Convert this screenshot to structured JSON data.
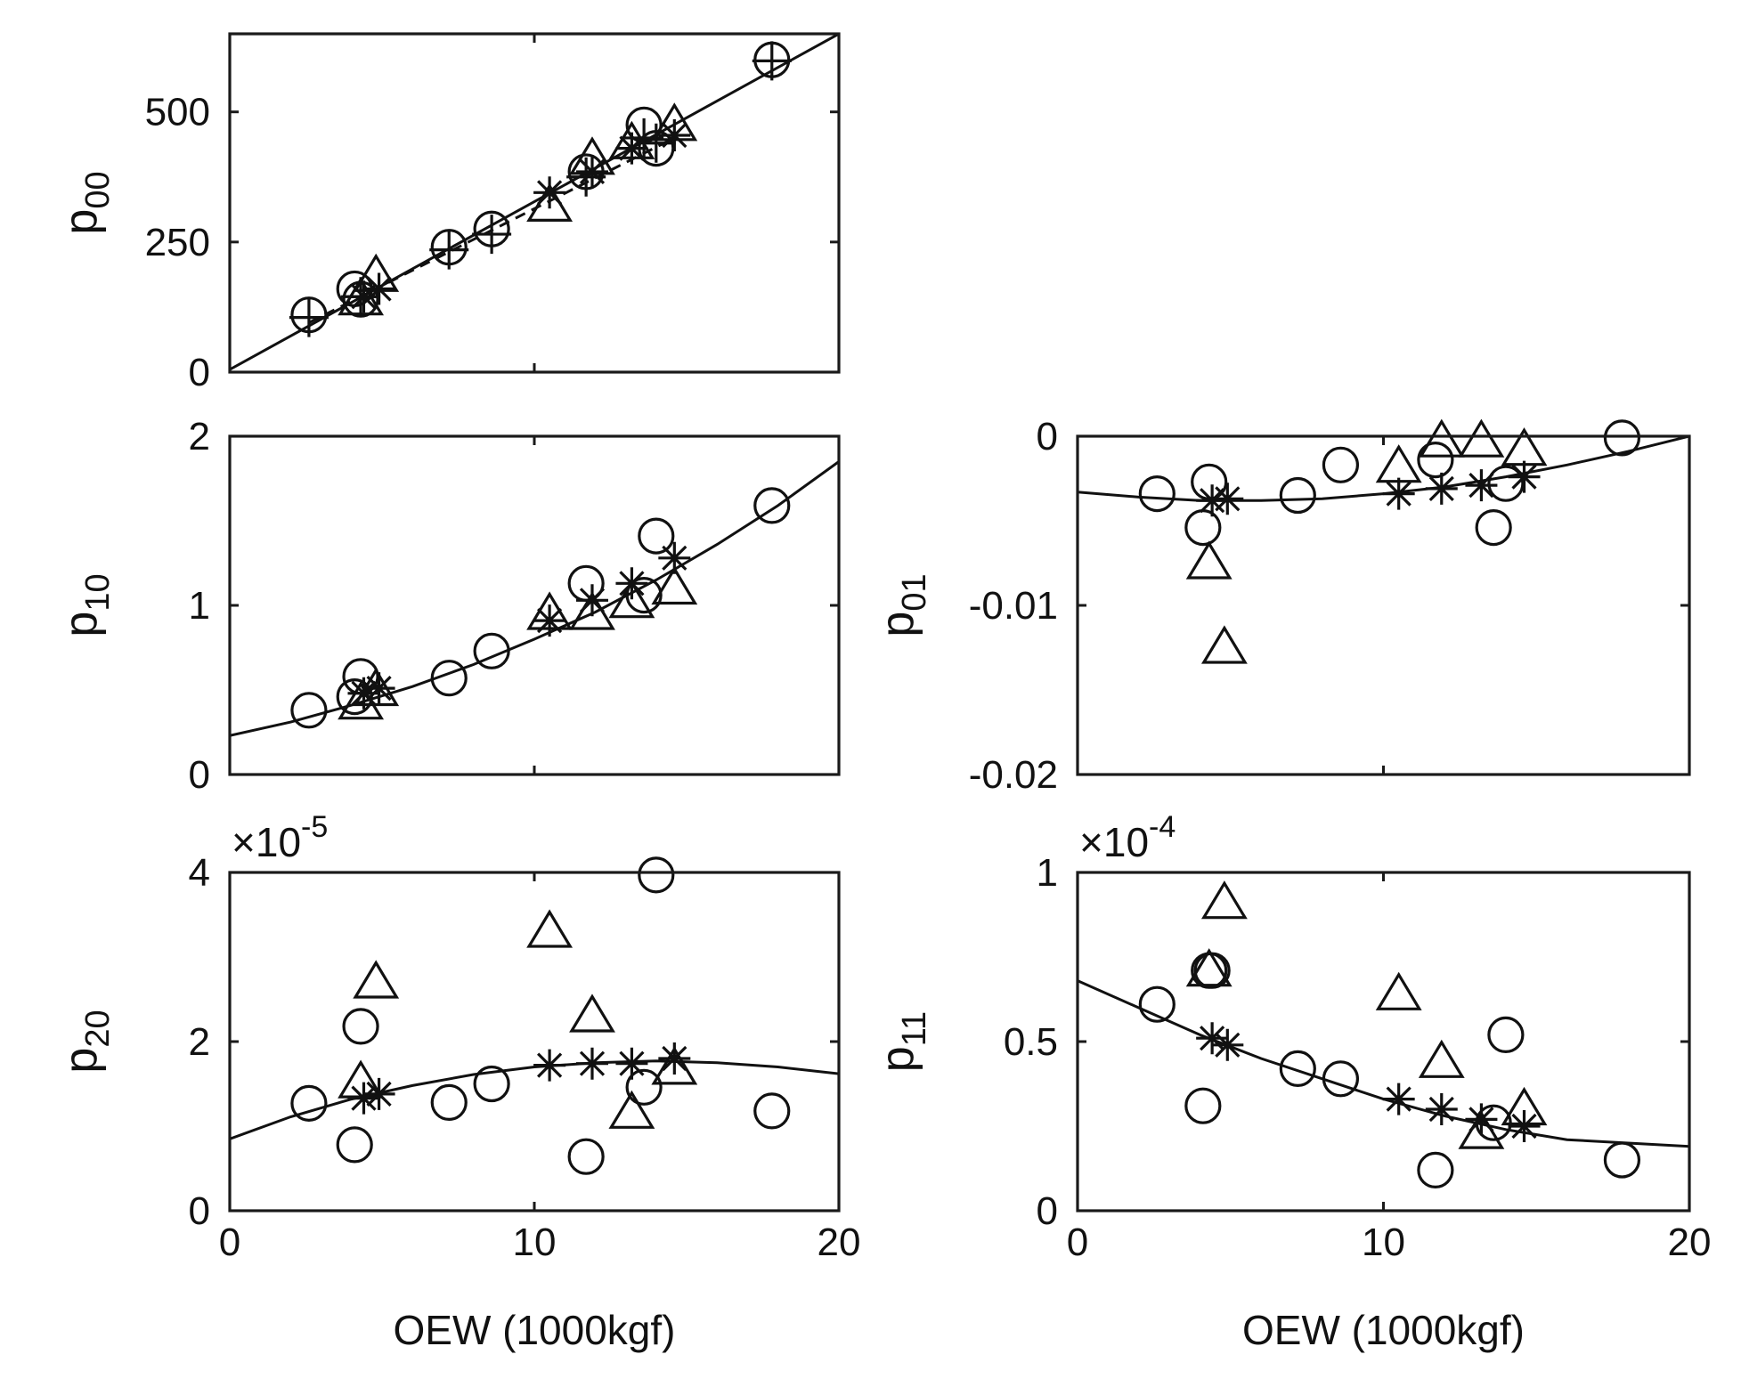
{
  "chart_data": [
    {
      "id": "p00",
      "type": "scatter",
      "ylabel_main": "p",
      "ylabel_sub": "00",
      "xlabel": "",
      "xlim": [
        0,
        20
      ],
      "ylim": [
        0,
        650
      ],
      "xticks": [
        0,
        10,
        20
      ],
      "show_xtick_labels": false,
      "yticks": [
        0,
        250,
        500
      ],
      "ytick_labels": [
        "0",
        "250",
        "500"
      ],
      "exponent": "",
      "exponent_power": "",
      "series": [
        {
          "name": "circle",
          "marker": "circle",
          "x": [
            2.6,
            4.1,
            4.3,
            7.2,
            8.6,
            11.7,
            13.6,
            14.0,
            17.8
          ],
          "y": [
            110,
            160,
            140,
            240,
            275,
            385,
            475,
            430,
            600
          ]
        },
        {
          "name": "plus",
          "marker": "plus",
          "x": [
            2.6,
            4.3,
            7.2,
            8.6,
            11.7,
            13.6,
            14.0,
            17.8
          ],
          "y": [
            105,
            145,
            235,
            265,
            375,
            450,
            440,
            598
          ]
        },
        {
          "name": "triangle",
          "marker": "triangle",
          "x": [
            4.3,
            4.8,
            10.5,
            11.9,
            13.2,
            14.6
          ],
          "y": [
            140,
            185,
            320,
            410,
            440,
            475
          ]
        },
        {
          "name": "star",
          "marker": "star",
          "x": [
            4.4,
            4.9,
            10.5,
            11.9,
            13.2,
            14.6
          ],
          "y": [
            145,
            160,
            345,
            385,
            430,
            455
          ]
        }
      ],
      "fits": [
        {
          "style": "solid",
          "x": [
            0,
            20
          ],
          "y": [
            5,
            650
          ]
        },
        {
          "style": "dashed",
          "x": [
            2.6,
            14.6
          ],
          "y": [
            95,
            450
          ]
        }
      ]
    },
    {
      "id": "p10",
      "type": "scatter",
      "ylabel_main": "p",
      "ylabel_sub": "10",
      "xlabel": "",
      "xlim": [
        0,
        20
      ],
      "ylim": [
        0,
        2
      ],
      "xticks": [
        0,
        10,
        20
      ],
      "show_xtick_labels": false,
      "yticks": [
        0,
        1,
        2
      ],
      "ytick_labels": [
        "0",
        "1",
        "2"
      ],
      "exponent": "",
      "exponent_power": "",
      "series": [
        {
          "name": "circle",
          "marker": "circle",
          "x": [
            2.6,
            4.1,
            4.3,
            7.2,
            8.6,
            11.7,
            13.6,
            14.0,
            17.8
          ],
          "y": [
            0.38,
            0.46,
            0.58,
            0.57,
            0.73,
            1.13,
            1.06,
            1.41,
            1.59
          ]
        },
        {
          "name": "triangle",
          "marker": "triangle",
          "x": [
            4.3,
            4.8,
            10.5,
            11.9,
            13.2,
            14.6
          ],
          "y": [
            0.42,
            0.5,
            0.95,
            0.95,
            1.02,
            1.1
          ]
        },
        {
          "name": "star",
          "marker": "star",
          "x": [
            4.4,
            4.9,
            10.5,
            11.9,
            13.2,
            14.6
          ],
          "y": [
            0.48,
            0.51,
            0.91,
            1.03,
            1.13,
            1.28
          ]
        }
      ],
      "fits": [
        {
          "style": "solid",
          "x": [
            0,
            2,
            4,
            6,
            8,
            10,
            12,
            14,
            16,
            18,
            20
          ],
          "y": [
            0.23,
            0.31,
            0.41,
            0.52,
            0.65,
            0.8,
            0.96,
            1.15,
            1.36,
            1.59,
            1.85
          ]
        }
      ]
    },
    {
      "id": "p01",
      "type": "scatter",
      "ylabel_main": "p",
      "ylabel_sub": "01",
      "xlabel": "",
      "xlim": [
        0,
        20
      ],
      "ylim": [
        -0.02,
        0
      ],
      "xticks": [
        0,
        10,
        20
      ],
      "show_xtick_labels": false,
      "yticks": [
        -0.02,
        -0.01,
        0
      ],
      "ytick_labels": [
        "-0.02",
        "-0.01",
        "0"
      ],
      "exponent": "",
      "exponent_power": "",
      "series": [
        {
          "name": "circle",
          "marker": "circle",
          "x": [
            2.6,
            4.1,
            4.3,
            7.2,
            8.6,
            11.7,
            13.6,
            14.0,
            17.8
          ],
          "y": [
            -0.0034,
            -0.0054,
            -0.0027,
            -0.0035,
            -0.0017,
            -0.0014,
            -0.0054,
            -0.0028,
            -0.0001
          ]
        },
        {
          "name": "triangle",
          "marker": "triangle",
          "x": [
            4.3,
            4.8,
            10.5,
            11.9,
            13.2,
            14.6
          ],
          "y": [
            -0.0075,
            -0.0125,
            -0.0018,
            -0.0003,
            -0.0003,
            -0.0008
          ]
        },
        {
          "name": "star",
          "marker": "star",
          "x": [
            4.4,
            4.9,
            10.5,
            11.9,
            13.2,
            14.6
          ],
          "y": [
            -0.0038,
            -0.0037,
            -0.0034,
            -0.0031,
            -0.0029,
            -0.0024
          ]
        }
      ],
      "fits": [
        {
          "style": "solid",
          "x": [
            0,
            2,
            4,
            6,
            8,
            10,
            12,
            14,
            16,
            18,
            20
          ],
          "y": [
            -0.0033,
            -0.0036,
            -0.0038,
            -0.0038,
            -0.0037,
            -0.0034,
            -0.003,
            -0.0024,
            -0.0017,
            -0.0009,
            0.0
          ]
        }
      ]
    },
    {
      "id": "p20",
      "type": "scatter",
      "ylabel_main": "p",
      "ylabel_sub": "20",
      "xlabel": "OEW (1000kgf)",
      "xlim": [
        0,
        20
      ],
      "ylim": [
        0,
        4
      ],
      "xticks": [
        0,
        10,
        20
      ],
      "show_xtick_labels": true,
      "xtick_labels": [
        "0",
        "10",
        "20"
      ],
      "yticks": [
        0,
        2,
        4
      ],
      "ytick_labels": [
        "0",
        "2",
        "4"
      ],
      "exponent": "×10",
      "exponent_power": "-5",
      "series": [
        {
          "name": "circle",
          "marker": "circle",
          "x": [
            2.6,
            4.1,
            4.3,
            7.2,
            8.6,
            11.7,
            13.6,
            14.0,
            17.8
          ],
          "y": [
            1.27,
            0.78,
            2.18,
            1.28,
            1.5,
            0.64,
            1.46,
            3.97,
            1.18
          ]
        },
        {
          "name": "triangle",
          "marker": "triangle",
          "x": [
            4.3,
            4.8,
            10.5,
            11.9,
            13.2,
            14.6
          ],
          "y": [
            1.52,
            2.7,
            3.3,
            2.3,
            1.16,
            1.68
          ]
        },
        {
          "name": "star",
          "marker": "star",
          "x": [
            4.4,
            4.9,
            10.5,
            11.9,
            13.2,
            14.6
          ],
          "y": [
            1.33,
            1.38,
            1.72,
            1.74,
            1.74,
            1.8
          ]
        }
      ],
      "fits": [
        {
          "style": "solid",
          "x": [
            0,
            2,
            4,
            6,
            8,
            10,
            12,
            14,
            16,
            18,
            20
          ],
          "y": [
            0.85,
            1.11,
            1.32,
            1.48,
            1.61,
            1.7,
            1.75,
            1.77,
            1.75,
            1.7,
            1.62
          ]
        }
      ]
    },
    {
      "id": "p11",
      "type": "scatter",
      "ylabel_main": "p",
      "ylabel_sub": "11",
      "xlabel": "OEW (1000kgf)",
      "xlim": [
        0,
        20
      ],
      "ylim": [
        0,
        1
      ],
      "xticks": [
        0,
        10,
        20
      ],
      "show_xtick_labels": true,
      "xtick_labels": [
        "0",
        "10",
        "20"
      ],
      "yticks": [
        0,
        0.5,
        1
      ],
      "ytick_labels": [
        "0",
        "0.5",
        "1"
      ],
      "exponent": "×10",
      "exponent_power": "-4",
      "series": [
        {
          "name": "circle",
          "marker": "circle",
          "x": [
            2.6,
            4.1,
            4.3,
            4.4,
            7.2,
            8.6,
            11.7,
            13.6,
            14.0,
            17.8
          ],
          "y": [
            0.61,
            0.31,
            0.71,
            0.71,
            0.42,
            0.39,
            0.12,
            0.26,
            0.52,
            0.15
          ]
        },
        {
          "name": "triangle",
          "marker": "triangle",
          "x": [
            4.3,
            4.8,
            10.5,
            11.9,
            13.2,
            14.6
          ],
          "y": [
            0.71,
            0.91,
            0.64,
            0.44,
            0.23,
            0.3
          ]
        },
        {
          "name": "star",
          "marker": "star",
          "x": [
            4.4,
            4.9,
            10.5,
            11.9,
            13.2,
            14.6
          ],
          "y": [
            0.51,
            0.49,
            0.33,
            0.3,
            0.27,
            0.25
          ]
        }
      ],
      "fits": [
        {
          "style": "solid",
          "x": [
            0,
            2,
            4,
            6,
            8,
            10,
            12,
            14,
            16,
            18,
            20
          ],
          "y": [
            0.68,
            0.6,
            0.52,
            0.45,
            0.39,
            0.33,
            0.28,
            0.24,
            0.21,
            0.2,
            0.19
          ]
        }
      ]
    }
  ]
}
